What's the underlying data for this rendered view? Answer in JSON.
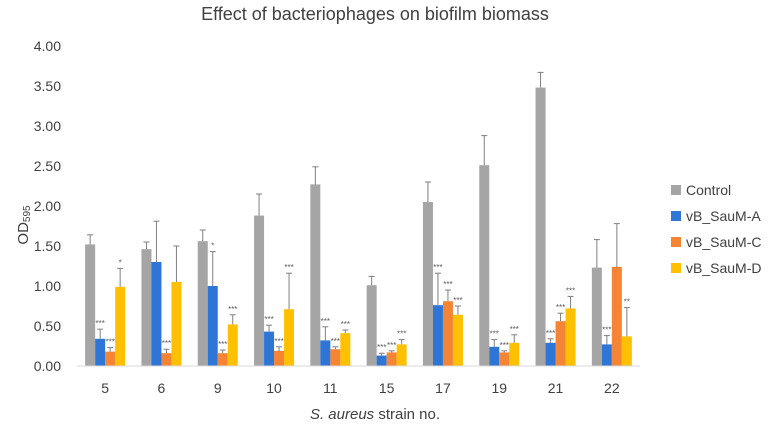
{
  "chart_data": {
    "type": "bar",
    "title": "Effect of bacteriophages on biofilm biomass",
    "xlabel_italic": "S. aureus",
    "xlabel_rest": " strain no.",
    "ylabel_main": "OD",
    "ylabel_sub": "595",
    "ylim": [
      0,
      4
    ],
    "yticks": [
      "0.00",
      "0.50",
      "1.00",
      "1.50",
      "2.00",
      "2.50",
      "3.00",
      "3.50",
      "4.00"
    ],
    "ytick_values": [
      0,
      0.5,
      1,
      1.5,
      2,
      2.5,
      3,
      3.5,
      4
    ],
    "categories": [
      "5",
      "6",
      "9",
      "10",
      "11",
      "15",
      "17",
      "19",
      "21",
      "22"
    ],
    "legend_position": "right",
    "grid": false,
    "series": [
      {
        "name": "Control",
        "color": "#a5a5a5",
        "values": [
          1.52,
          1.46,
          1.56,
          1.88,
          2.27,
          1.01,
          2.05,
          2.51,
          3.48,
          1.23
        ],
        "errors": [
          0.12,
          0.09,
          0.14,
          0.27,
          0.22,
          0.11,
          0.25,
          0.37,
          0.19,
          0.35
        ],
        "sig": [
          "",
          "",
          "",
          "",
          "",
          "",
          "",
          "",
          "",
          ""
        ]
      },
      {
        "name": "vB_SauM-A",
        "color": "#2e75d6",
        "values": [
          0.34,
          1.3,
          1.0,
          0.43,
          0.32,
          0.13,
          0.76,
          0.24,
          0.29,
          0.27
        ],
        "errors": [
          0.12,
          0.51,
          0.43,
          0.08,
          0.17,
          0.03,
          0.4,
          0.09,
          0.05,
          0.11
        ],
        "sig": [
          "***",
          "",
          "*",
          "***",
          "***",
          "***",
          "***",
          "***",
          "***",
          "***"
        ]
      },
      {
        "name": "vB_SauM-C",
        "color": "#f58534",
        "values": [
          0.18,
          0.16,
          0.16,
          0.19,
          0.21,
          0.17,
          0.81,
          0.17,
          0.56,
          1.24
        ],
        "errors": [
          0.05,
          0.05,
          0.04,
          0.05,
          0.03,
          0.02,
          0.14,
          0.02,
          0.1,
          0.54
        ],
        "sig": [
          "***",
          "***",
          "***",
          "***",
          "***",
          "***",
          "***",
          "***",
          "***",
          ""
        ]
      },
      {
        "name": "vB_SauM-D",
        "color": "#ffc000",
        "values": [
          0.99,
          1.05,
          0.52,
          0.71,
          0.41,
          0.27,
          0.64,
          0.29,
          0.72,
          0.37
        ],
        "errors": [
          0.23,
          0.45,
          0.12,
          0.45,
          0.04,
          0.06,
          0.11,
          0.1,
          0.15,
          0.36
        ],
        "sig": [
          "*",
          "",
          "***",
          "***",
          "***",
          "***",
          "***",
          "***",
          "***",
          "**"
        ]
      }
    ]
  }
}
